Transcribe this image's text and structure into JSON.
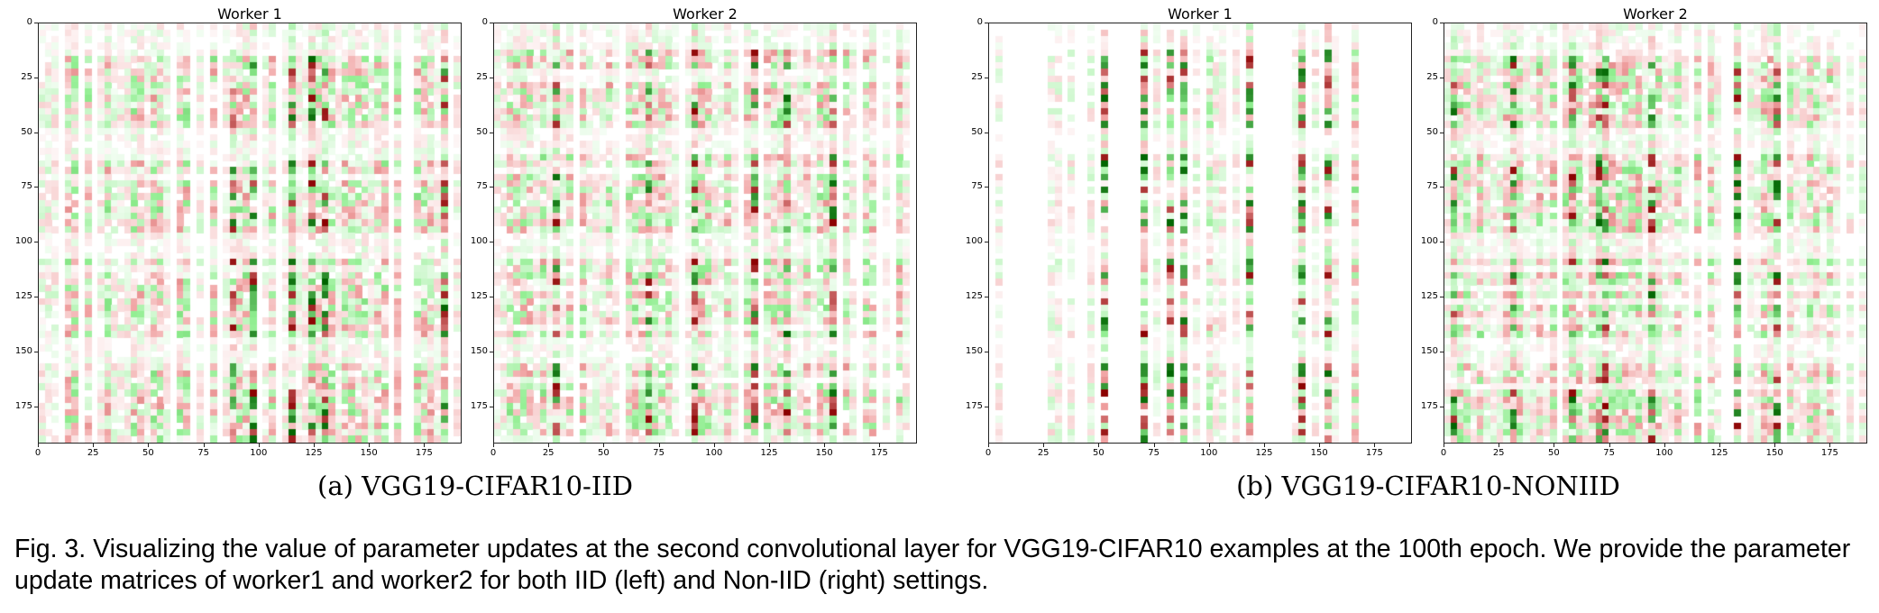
{
  "figure": {
    "subcaptions": [
      "(a)  VGG19-CIFAR10-IID",
      "(b)  VGG19-CIFAR10-NONIID"
    ],
    "caption": "Fig. 3. Visualizing the value of parameter updates at the second convolutional layer for VGG19-CIFAR10 examples at the 100th epoch. We provide the parameter update matrices of worker1 and worker2 for both IID (left) and Non-IID (right) settings.",
    "colormap": {
      "negative": "#006400",
      "zero": "#ffffff",
      "positive": "#8b0000"
    }
  },
  "chart_data": [
    {
      "type": "heatmap",
      "title": "Worker 1",
      "group": "IID",
      "xlim": [
        0,
        192
      ],
      "ylim": [
        192,
        0
      ],
      "x_ticks": [
        "0",
        "25",
        "50",
        "75",
        "100",
        "125",
        "150",
        "175"
      ],
      "y_ticks": [
        "0",
        "25",
        "50",
        "75",
        "100",
        "125",
        "150",
        "175"
      ],
      "grid": false
    },
    {
      "type": "heatmap",
      "title": "Worker 2",
      "group": "IID",
      "xlim": [
        0,
        192
      ],
      "ylim": [
        192,
        0
      ],
      "x_ticks": [
        "0",
        "25",
        "50",
        "75",
        "100",
        "125",
        "150",
        "175"
      ],
      "y_ticks": [
        "0",
        "25",
        "50",
        "75",
        "100",
        "125",
        "150",
        "175"
      ],
      "grid": false
    },
    {
      "type": "heatmap",
      "title": "Worker 1",
      "group": "Non-IID",
      "xlim": [
        0,
        192
      ],
      "ylim": [
        192,
        0
      ],
      "x_ticks": [
        "0",
        "25",
        "50",
        "75",
        "100",
        "125",
        "150",
        "175"
      ],
      "y_ticks": [
        "0",
        "25",
        "50",
        "75",
        "100",
        "125",
        "150",
        "175"
      ],
      "grid": false
    },
    {
      "type": "heatmap",
      "title": "Worker 2",
      "group": "Non-IID",
      "xlim": [
        0,
        192
      ],
      "ylim": [
        192,
        0
      ],
      "x_ticks": [
        "0",
        "25",
        "50",
        "75",
        "100",
        "125",
        "150",
        "175"
      ],
      "y_ticks": [
        "0",
        "25",
        "50",
        "75",
        "100",
        "125",
        "150",
        "175"
      ],
      "grid": false
    }
  ]
}
